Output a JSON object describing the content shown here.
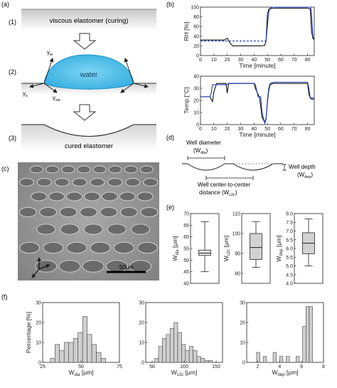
{
  "panel_a": {
    "label": "(a)",
    "steps": [
      "(1)",
      "(2)",
      "(3)"
    ],
    "viscous_text": "viscous elastomer (curing)",
    "water_text": "water",
    "cured_text": "cured elastomer",
    "gamma_w": "γ",
    "gamma_w_sub": "w",
    "gamma_s": "γ",
    "gamma_s_sub": "s",
    "gamma_sw": "γ",
    "gamma_sw_sub": "sw"
  },
  "panel_c": {
    "label": "(c)",
    "scale_bar": "50μm"
  },
  "panel_d": {
    "label": "(d)",
    "diameter_label": "Well diameter",
    "diameter_sym": "(W",
    "diameter_sub": "dia",
    "close": ")",
    "depth_label": "Well depth",
    "depth_sym": "(W",
    "depth_sub": "dep",
    "dist_label": "Well center-to-center",
    "dist_label2": "distance (W",
    "dist_sub": "c2c"
  },
  "chart_data": [
    {
      "id": "b1",
      "panel": "(b)",
      "type": "line",
      "xlabel": "Time [minute]",
      "ylabel": "RH [%]",
      "xlim": [
        0,
        85
      ],
      "ylim": [
        0,
        100
      ],
      "xticks": [
        0,
        10,
        20,
        30,
        40,
        50,
        60,
        70,
        80
      ],
      "yticks": [
        0,
        20,
        40,
        60,
        80,
        100
      ],
      "series": [
        {
          "color": "#111111",
          "style": "solid",
          "x": [
            0,
            18,
            20,
            22,
            24,
            45,
            48,
            49,
            50,
            51,
            53,
            56,
            60,
            65,
            80,
            82,
            83,
            84,
            85
          ],
          "y": [
            32,
            32,
            36,
            26,
            20,
            20,
            21,
            30,
            85,
            96,
            97,
            98,
            98,
            98,
            98,
            96,
            50,
            35,
            33
          ]
        },
        {
          "color": "#1f3fbf",
          "style": "dashed",
          "x": [
            0,
            49
          ],
          "y": [
            30,
            30
          ]
        },
        {
          "color": "#1f3fbf",
          "style": "solid",
          "x": [
            49,
            50,
            51,
            52,
            54,
            82,
            82.5,
            83,
            84,
            85
          ],
          "y": [
            30,
            60,
            90,
            98,
            100,
            100,
            98,
            85,
            40,
            33
          ]
        }
      ]
    },
    {
      "id": "b2",
      "type": "line",
      "xlabel": "Time [minute]",
      "ylabel": "Temp.[°C]",
      "xlim": [
        0,
        85
      ],
      "ylim": [
        0,
        40
      ],
      "xticks": [
        0,
        10,
        20,
        30,
        40,
        50,
        60,
        70,
        80
      ],
      "yticks": [
        0,
        10,
        20,
        30,
        40
      ],
      "series": [
        {
          "color": "#111111",
          "style": "solid",
          "x": [
            0,
            7,
            9,
            10,
            12,
            19,
            20,
            21,
            40,
            41,
            43,
            44,
            45,
            46,
            48,
            49,
            50,
            51,
            52,
            54,
            60,
            80,
            81,
            82,
            83,
            85
          ],
          "y": [
            23,
            23,
            19,
            27,
            34,
            34,
            26,
            34,
            34,
            30,
            25,
            23,
            15,
            6,
            2,
            5,
            18,
            28,
            33,
            34,
            34,
            34,
            25,
            22,
            21,
            21
          ]
        },
        {
          "color": "#1f3fbf",
          "style": "solid",
          "x": [
            0,
            7,
            8,
            9,
            20,
            21,
            40,
            41,
            42,
            43,
            45,
            46,
            48,
            49,
            50,
            51,
            52,
            55,
            80,
            81,
            82,
            85
          ],
          "y": [
            23,
            23,
            26,
            33,
            33,
            34,
            34,
            33,
            28,
            23,
            23,
            10,
            1,
            4,
            20,
            30,
            34,
            35,
            35,
            30,
            22,
            22
          ]
        }
      ]
    },
    {
      "id": "e1",
      "panel": "(e)",
      "type": "box",
      "ylabel": "W",
      "ylabel_sub": "dia",
      "ylabel_unit": " [μm]",
      "ylim": [
        40,
        70
      ],
      "yticks": [
        40,
        45,
        50,
        55,
        60,
        65,
        70
      ],
      "whisker_low": 45,
      "q1": 52,
      "median": 53,
      "q3": 54.3,
      "whisker_high": 66.5
    },
    {
      "id": "e2",
      "type": "box",
      "ylabel": "W",
      "ylabel_sub": "c2c",
      "ylabel_unit": " [μm]",
      "ylim": [
        75,
        110
      ],
      "yticks": [
        80,
        90,
        100,
        110
      ],
      "whisker_low": 83,
      "q1": 87,
      "median": 93,
      "q3": 100,
      "whisker_high": 106
    },
    {
      "id": "e3",
      "type": "box",
      "ylabel": "W",
      "ylabel_sub": "dep",
      "ylabel_unit": " [μm]",
      "ylim": [
        4.0,
        8.0
      ],
      "yticks": [
        4.0,
        4.5,
        5.0,
        5.5,
        6.0,
        6.5,
        7.0,
        7.5,
        8.0
      ],
      "whisker_low": 5.0,
      "q1": 5.7,
      "median": 6.3,
      "q3": 6.9,
      "whisker_high": 7.7
    },
    {
      "id": "f1",
      "panel": "(f)",
      "type": "histogram",
      "ylabel": "Percentage [%]",
      "xlabel": "W",
      "xlabel_sub": "dia",
      "xlabel_unit": " [μm]",
      "xlim": [
        25,
        75
      ],
      "ylim": [
        0,
        30
      ],
      "xticks": [
        25,
        50,
        75
      ],
      "yticks": [
        0,
        10,
        20,
        30
      ],
      "bin_edges": [
        30,
        33,
        36,
        39,
        42,
        45,
        48,
        51,
        54,
        57,
        60,
        63,
        66
      ],
      "values": [
        2,
        9,
        6,
        10,
        10,
        12,
        15,
        23,
        14,
        9,
        5,
        2
      ]
    },
    {
      "id": "f2",
      "type": "histogram",
      "xlabel": "W",
      "xlabel_sub": "c2c",
      "xlabel_unit": " [μm]",
      "xlim": [
        40,
        160
      ],
      "ylim": [
        0,
        30
      ],
      "xticks": [
        50,
        100,
        150
      ],
      "yticks": [
        0,
        10,
        20,
        30
      ],
      "bin_edges": [
        54,
        60,
        66,
        72,
        78,
        84,
        90,
        96,
        102,
        108,
        114,
        120,
        126,
        132,
        138,
        144
      ],
      "values": [
        2,
        8,
        12,
        14,
        17,
        20,
        15,
        9,
        6,
        8,
        6,
        3,
        2,
        1,
        1
      ]
    },
    {
      "id": "f3",
      "type": "histogram",
      "xlabel": "W",
      "xlabel_sub": "dep",
      "xlabel_unit": " [μm]",
      "xlim": [
        1,
        8
      ],
      "ylim": [
        0,
        30
      ],
      "xticks": [
        2,
        4,
        6,
        8
      ],
      "yticks": [
        0,
        10,
        20,
        30
      ],
      "bin_edges": [
        1.9,
        2.2,
        2.5,
        2.8,
        3.1,
        3.4,
        3.7,
        4.0,
        4.3,
        4.6,
        4.9,
        5.2,
        5.5,
        5.8,
        6.1,
        6.4,
        6.7,
        7.0
      ],
      "values": [
        5,
        0,
        3,
        0,
        0,
        5,
        0,
        3,
        0,
        3,
        0,
        0,
        3,
        0,
        18,
        28,
        28
      ]
    }
  ]
}
